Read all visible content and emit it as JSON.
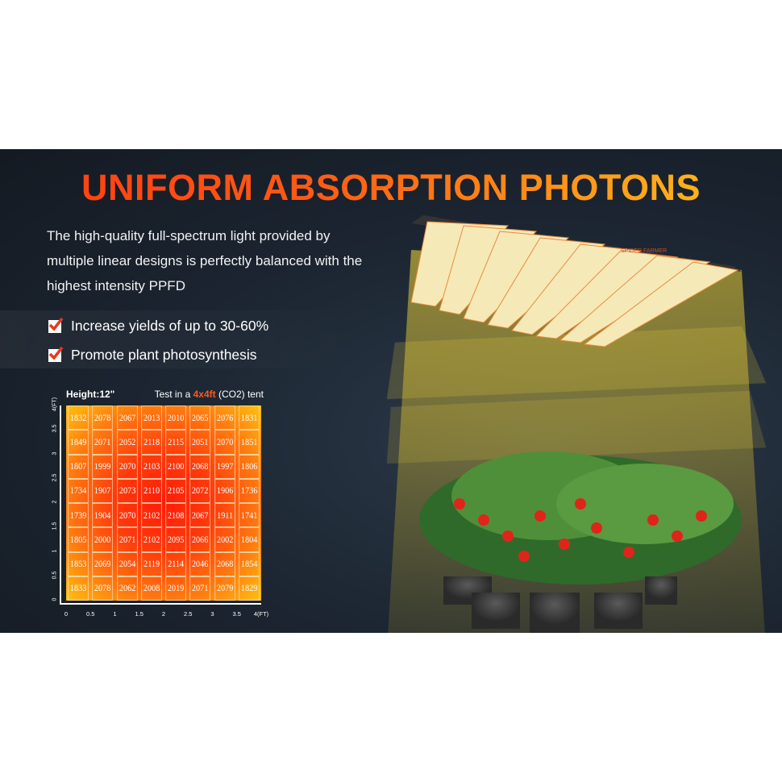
{
  "title": "UNIFORM ABSORPTION PHOTONS",
  "description": "The high-quality full-spectrum light provided by multiple linear designs is perfectly balanced with the highest intensity PPFD",
  "bullets": [
    "Increase yields of up to 30-60%",
    "Promote plant photosynthesis"
  ],
  "brand_logo": "SPIDER FARMER",
  "heatmap": {
    "height_label": "Height:12\"",
    "test_prefix": "Test in a ",
    "test_highlight": "4x4ft",
    "test_suffix": " (CO2) tent",
    "accent_color": "#ff5a1a"
  },
  "chart_data": {
    "type": "heatmap",
    "xlabel": "(FT)",
    "ylabel": "(FT)",
    "x_ticks": [
      "0",
      "0.5",
      "1",
      "1.5",
      "2",
      "2.5",
      "3",
      "3.5",
      "4(FT)"
    ],
    "y_ticks": [
      "0",
      "0.5",
      "1",
      "1.5",
      "2",
      "2.5",
      "3",
      "3.5",
      "4(FT)"
    ],
    "rows_top_to_bottom": [
      [
        1832,
        2078,
        2067,
        2013,
        2010,
        2065,
        2076,
        1831
      ],
      [
        1849,
        2071,
        2052,
        2118,
        2115,
        2051,
        2070,
        1851
      ],
      [
        1807,
        1999,
        2070,
        2103,
        2100,
        2068,
        1997,
        1806
      ],
      [
        1734,
        1907,
        2073,
        2110,
        2105,
        2072,
        1906,
        1736
      ],
      [
        1739,
        1904,
        2070,
        2102,
        2108,
        2067,
        1911,
        1741
      ],
      [
        1805,
        2000,
        2071,
        2102,
        2095,
        2066,
        2002,
        1804
      ],
      [
        1853,
        2069,
        2054,
        2119,
        2114,
        2046,
        2068,
        1854
      ],
      [
        1833,
        2078,
        2062,
        2008,
        2019,
        2071,
        2079,
        1829
      ]
    ]
  }
}
